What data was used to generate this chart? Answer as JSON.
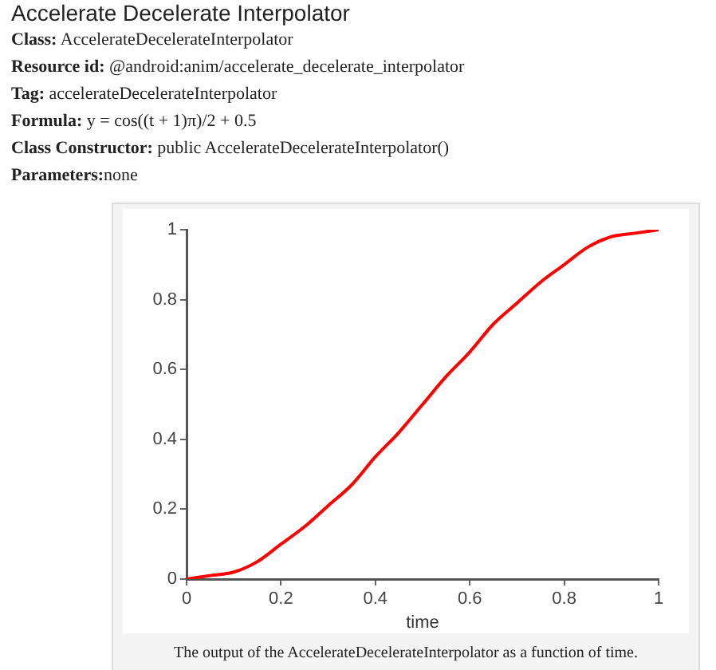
{
  "chart_data": {
    "type": "line",
    "title": "Accelerate Decelerate Interpolator",
    "annotations": [
      "Class: AccelerateDecelerateInterpolator",
      "Resource id: @android:anim/accelerate_decelerate_interpolator",
      "Tag: accelerateDecelerateInterpolator",
      "Formula: y = cos((t + 1)π)/2 + 0.5",
      "Class Constructor: public AccelerateDecelerateInterpolator()",
      "Parameters:none",
      "The output of the AccelerateDecelerateInterpolator as a function of time."
    ],
    "xlabel": "time",
    "x": [
      0,
      0.05,
      0.1,
      0.15,
      0.2,
      0.25,
      0.3,
      0.35,
      0.4,
      0.45,
      0.5,
      0.55,
      0.6,
      0.65,
      0.7,
      0.75,
      0.8,
      0.85,
      0.9,
      0.95,
      1
    ],
    "values": [
      0,
      0.01,
      0.02,
      0.05,
      0.1,
      0.15,
      0.21,
      0.27,
      0.35,
      0.42,
      0.5,
      0.58,
      0.65,
      0.73,
      0.79,
      0.85,
      0.9,
      0.95,
      0.98,
      0.99,
      1
    ],
    "color": "#ff0000",
    "xlim": [
      0,
      1
    ],
    "ylim": [
      0,
      1
    ],
    "xticks": [
      0,
      0.2,
      0.4,
      0.6,
      0.8,
      1
    ],
    "yticks": [
      0,
      0.2,
      0.4,
      0.6,
      0.8,
      1
    ],
    "grid": false,
    "marker": "none",
    "line_style": "solid"
  }
}
